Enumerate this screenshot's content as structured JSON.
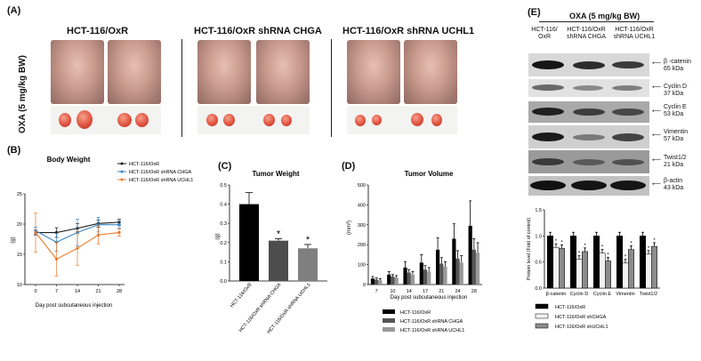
{
  "panels": {
    "a": "(A)",
    "b": "(B)",
    "c": "(C)",
    "d": "(D)",
    "e": "(E)"
  },
  "panel_a": {
    "y_label": "OXA (5 mg/kg BW)",
    "groups": [
      "HCT-116/OxR",
      "HCT-116/OxR shRNA CHGA",
      "HCT-116/OxR shRNA UCHL1"
    ]
  },
  "chart_data": [
    {
      "id": "body_weight",
      "type": "line",
      "title": "Body Weight",
      "xlabel": "Day post subcutaneous injection",
      "ylabel": "(g)",
      "x": [
        0,
        7,
        14,
        21,
        28
      ],
      "ylim": [
        10,
        25
      ],
      "yticks": [
        10,
        15,
        20,
        25
      ],
      "series": [
        {
          "name": "HCT-116/OxR",
          "color": "#1a1a1a",
          "values": [
            18.6,
            18.6,
            19.3,
            20.1,
            20.3
          ],
          "err": [
            0.4,
            0.8,
            0.8,
            0.6,
            0.5
          ]
        },
        {
          "name": "HCT-116/OxR shRNA CHGA",
          "color": "#3a86c4",
          "values": [
            18.9,
            17.0,
            18.6,
            19.9,
            19.9
          ],
          "err": [
            0.6,
            1.5,
            2.2,
            1.2,
            0.6
          ]
        },
        {
          "name": "HCT-116/OxR shRNA UCHL1",
          "color": "#e8792a",
          "values": [
            18.6,
            14.2,
            16.0,
            18.2,
            18.6
          ],
          "err": [
            3.2,
            2.8,
            2.8,
            1.5,
            0.6
          ]
        }
      ]
    },
    {
      "id": "tumor_weight",
      "type": "bar",
      "title": "Tumor Weight",
      "ylabel": "(g)",
      "categories": [
        "HCT-116/OxR",
        "HCT-116/OxR shRNA CHGA",
        "HCT-116/OxR shRNA UCHL1"
      ],
      "values": [
        0.4,
        0.21,
        0.17
      ],
      "err": [
        0.06,
        0.01,
        0.02
      ],
      "colors": [
        "#000000",
        "#4d4d4d",
        "#7f7f7f"
      ],
      "significance": [
        "",
        "*",
        "*"
      ],
      "ylim": [
        0.0,
        0.5
      ],
      "yticks": [
        "0.0",
        "0.1",
        "0.2",
        "0.3",
        "0.4",
        "0.5"
      ]
    },
    {
      "id": "tumor_volume",
      "type": "bar",
      "title": "Tumor Volume",
      "xlabel": "Day post subcutaneous injection",
      "ylabel": "(mm³)",
      "categories": [
        "7",
        "10",
        "14",
        "17",
        "21",
        "24",
        "28"
      ],
      "ylim": [
        0,
        500
      ],
      "yticks": [
        0,
        100,
        200,
        300,
        400,
        500
      ],
      "series": [
        {
          "name": "HCT-116/OxR",
          "color": "#000000",
          "values": [
            30,
            50,
            85,
            110,
            175,
            230,
            295
          ],
          "err": [
            10,
            15,
            30,
            40,
            60,
            75,
            125
          ]
        },
        {
          "name": "HCT-116/OxR shRNA CHGA",
          "color": "#555555",
          "values": [
            25,
            40,
            60,
            75,
            105,
            130,
            175
          ],
          "err": [
            8,
            10,
            15,
            20,
            30,
            40,
            55
          ]
        },
        {
          "name": "HCT-116/OxR shRNA UCHL1",
          "color": "#999999",
          "values": [
            22,
            35,
            50,
            65,
            90,
            110,
            160
          ],
          "err": [
            8,
            10,
            15,
            20,
            25,
            35,
            50
          ]
        }
      ]
    },
    {
      "id": "protein_level",
      "type": "bar",
      "ylabel": "Protein level (Fold of control)",
      "categories": [
        "β-catenin",
        "Cyclin D",
        "Cyclin E",
        "Vimentin",
        "Twist1/2"
      ],
      "ylim": [
        0.0,
        1.5
      ],
      "yticks": [
        "0.0",
        "0.5",
        "1.0",
        "1.5"
      ],
      "series": [
        {
          "name": "HCT-116/OxR",
          "color": "#000000",
          "values": [
            1.0,
            1.0,
            1.0,
            1.0,
            1.0
          ]
        },
        {
          "name": "HCT-116/OxR shCHGA",
          "color": "#f2f2f2",
          "values": [
            0.78,
            0.55,
            0.67,
            0.48,
            0.65
          ]
        },
        {
          "name": "HCT-116/OxR shUCHL1",
          "color": "#8c8c8c",
          "values": [
            0.76,
            0.7,
            0.52,
            0.74,
            0.8
          ]
        }
      ]
    }
  ],
  "panel_e": {
    "treatment": "OXA (5 mg/kg BW)",
    "lanes": [
      "HCT-116/\nOxR",
      "HCT-116/OxR\nshRNA CHGA",
      "HCT-116/OxR\nshRNA UCHL1"
    ],
    "blots": [
      {
        "name": "β -catenin",
        "size": "65 kDa"
      },
      {
        "name": "Cyclin D",
        "size": "37 kDa"
      },
      {
        "name": "Cyclin E",
        "size": "53 kDa"
      },
      {
        "name": "Vimentin",
        "size": "57 kDa"
      },
      {
        "name": "Twist1/2",
        "size": "21 kDa"
      },
      {
        "name": "β-actin",
        "size": "43 kDa"
      }
    ]
  }
}
